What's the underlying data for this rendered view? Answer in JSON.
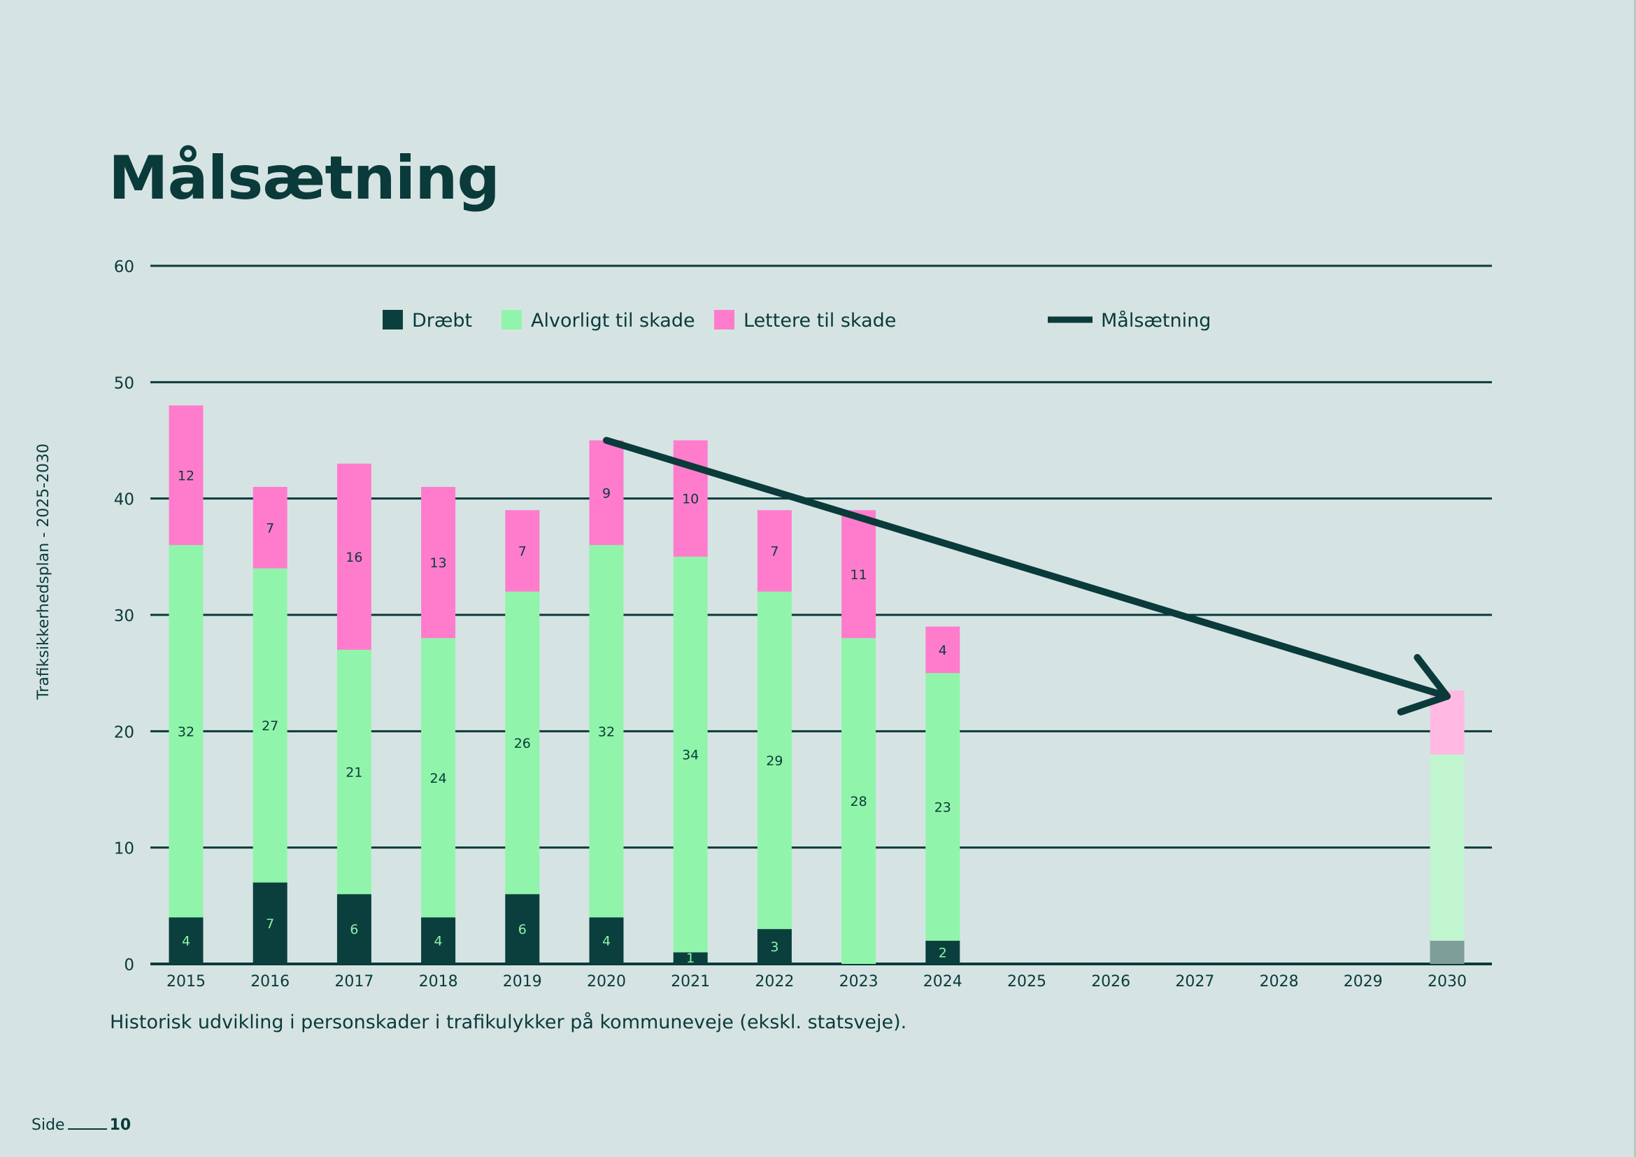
{
  "page": {
    "title": "Målsætning",
    "side_label": "Trafiksikkerhedsplan - 2025-2030",
    "caption": "Historisk udvikling i personskader i trafikulykker på kommuneveje (ekskl. statsveje).",
    "footer_label": "Side",
    "page_number": "10"
  },
  "chart_data": {
    "type": "bar",
    "stacked": true,
    "title": "",
    "xlabel": "",
    "ylabel": "",
    "ylim": [
      0,
      60
    ],
    "yticks": [
      0,
      10,
      20,
      30,
      40,
      50,
      60
    ],
    "grid": true,
    "legend_position": "top",
    "categories": [
      "2015",
      "2016",
      "2017",
      "2018",
      "2019",
      "2020",
      "2021",
      "2022",
      "2023",
      "2024",
      "2025",
      "2026",
      "2027",
      "2028",
      "2029",
      "2030"
    ],
    "series": [
      {
        "name": "Dræbt",
        "color": "#0b3f3d",
        "label_color": "#8ff2a8",
        "values": [
          4,
          7,
          6,
          4,
          6,
          4,
          1,
          3,
          0,
          2,
          null,
          null,
          null,
          null,
          null,
          2
        ]
      },
      {
        "name": "Alvorligt til skade",
        "color": "#90f5aa",
        "label_color": "#0b3a3a",
        "values": [
          32,
          27,
          21,
          24,
          26,
          32,
          34,
          29,
          28,
          23,
          null,
          null,
          null,
          null,
          null,
          16
        ]
      },
      {
        "name": "Lettere til skade",
        "color": "#ff7ccc",
        "label_color": "#0b3a3a",
        "values": [
          12,
          7,
          16,
          13,
          7,
          9,
          10,
          7,
          11,
          4,
          null,
          null,
          null,
          null,
          null,
          5.5
        ]
      }
    ],
    "data_labels": [
      {
        "category": "2015",
        "values": [
          "4",
          "32",
          "12"
        ]
      },
      {
        "category": "2016",
        "values": [
          "7",
          "27",
          "7"
        ]
      },
      {
        "category": "2017",
        "values": [
          "6",
          "21",
          "16"
        ]
      },
      {
        "category": "2018",
        "values": [
          "4",
          "24",
          "13"
        ]
      },
      {
        "category": "2019",
        "values": [
          "6",
          "26",
          "7"
        ]
      },
      {
        "category": "2020",
        "values": [
          "4",
          "32",
          "9"
        ]
      },
      {
        "category": "2021",
        "values": [
          "1",
          "34",
          "10"
        ]
      },
      {
        "category": "2022",
        "values": [
          "3",
          "29",
          "7"
        ]
      },
      {
        "category": "2023",
        "values": [
          "",
          "28",
          "11"
        ]
      },
      {
        "category": "2024",
        "values": [
          "2",
          "23",
          "4"
        ]
      }
    ],
    "target_category": "2030",
    "target_colors": [
      "#7e9e9a",
      "#c1f5cf",
      "#ffb9e2"
    ],
    "target_line": {
      "name": "Målsætning",
      "color": "#0b3a3a",
      "from": {
        "x": "2020",
        "y": 45
      },
      "to": {
        "x": "2030",
        "y": 23
      }
    }
  }
}
